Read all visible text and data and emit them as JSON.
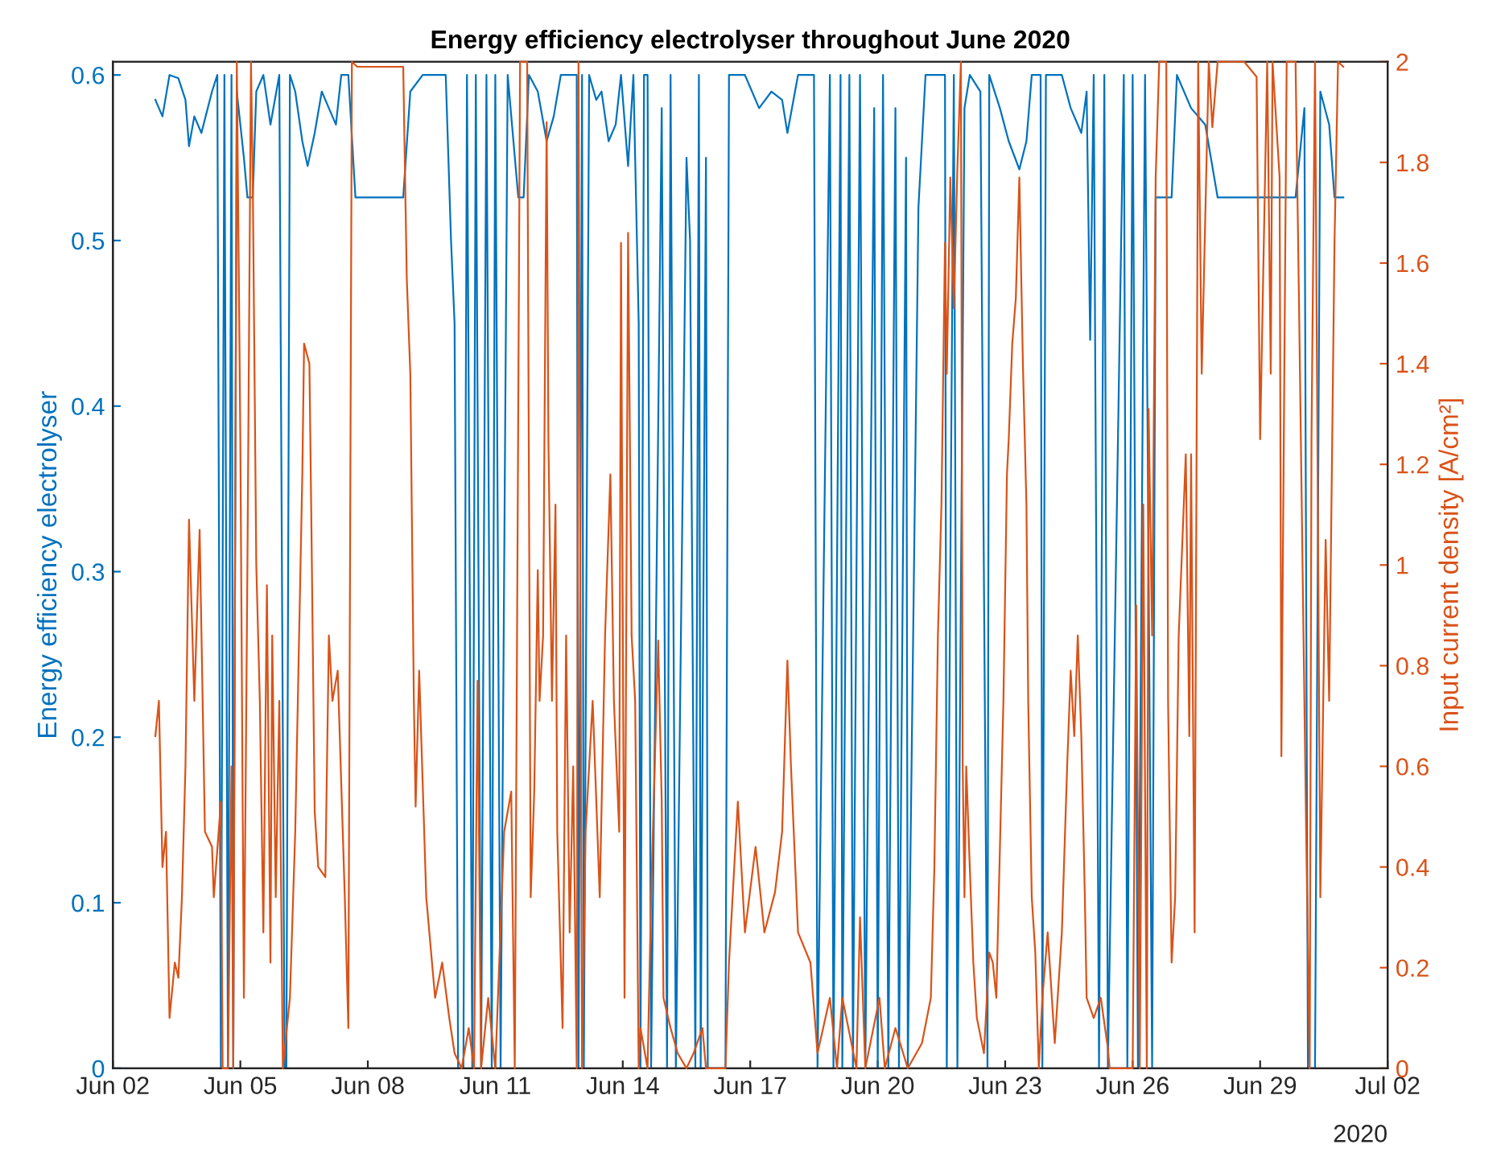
{
  "chart_data": {
    "type": "line",
    "title": "Energy efficiency electrolyser throughout June 2020",
    "ylabel": "Energy efficiency electrolyser",
    "y2label": "Input current density [A/cm²]",
    "xlim": [
      "2020-06-02",
      "2020-07-02"
    ],
    "xticks": [
      {
        "value": "2020-06-02",
        "label": "Jun 02"
      },
      {
        "value": "2020-06-05",
        "label": "Jun 05"
      },
      {
        "value": "2020-06-08",
        "label": "Jun 08"
      },
      {
        "value": "2020-06-11",
        "label": "Jun 11"
      },
      {
        "value": "2020-06-14",
        "label": "Jun 14"
      },
      {
        "value": "2020-06-17",
        "label": "Jun 17"
      },
      {
        "value": "2020-06-20",
        "label": "Jun 20"
      },
      {
        "value": "2020-06-23",
        "label": "Jun 23"
      },
      {
        "value": "2020-06-26",
        "label": "Jun 26"
      },
      {
        "value": "2020-06-29",
        "label": "Jun 29"
      },
      {
        "value": "2020-07-02",
        "label": "Jul 02"
      }
    ],
    "ylim": [
      0,
      0.608
    ],
    "yticks": [
      0,
      0.1,
      0.2,
      0.3,
      0.4,
      0.5,
      0.6
    ],
    "y2lim": [
      0,
      2
    ],
    "y2ticks": [
      0,
      0.2,
      0.4,
      0.6,
      0.8,
      1,
      1.2,
      1.4,
      1.6,
      1.8,
      2
    ],
    "grid": false,
    "legend": false,
    "marker": "none",
    "line_style": "solid",
    "annotations": [
      "2020"
    ],
    "series": [
      {
        "color": "#0072bd",
        "x": [
          "2020-06-03T00:00",
          "2020-06-03T04:00",
          "2020-06-03T08:00",
          "2020-06-03T13:00",
          "2020-06-03T17:00",
          "2020-06-03T19:00",
          "2020-06-03T22:00",
          "2020-06-04T02:00",
          "2020-06-04T08:00",
          "2020-06-04T11:00",
          "2020-06-04T13:00",
          "2020-06-04T15:00",
          "2020-06-04T17:00",
          "2020-06-04T19:00",
          "2020-06-04T20:00",
          "2020-06-04T22:00",
          "2020-06-05T02:00",
          "2020-06-05T04:00",
          "2020-06-05T07:00",
          "2020-06-05T09:00",
          "2020-06-05T13:00",
          "2020-06-05T17:00",
          "2020-06-05T22:00",
          "2020-06-06T01:00",
          "2020-06-06T02:00",
          "2020-06-06T04:00",
          "2020-06-06T07:00",
          "2020-06-06T11:00",
          "2020-06-06T14:00",
          "2020-06-06T18:00",
          "2020-06-06T22:00",
          "2020-06-07T02:00",
          "2020-06-07T06:00",
          "2020-06-07T09:00",
          "2020-06-07T13:00",
          "2020-06-07T17:00",
          "2020-06-08T20:00",
          "2020-06-09T00:00",
          "2020-06-09T07:00",
          "2020-06-09T14:00",
          "2020-06-09T20:00",
          "2020-06-09T23:00",
          "2020-06-10T01:00",
          "2020-06-10T03:00",
          "2020-06-10T06:00",
          "2020-06-10T08:00",
          "2020-06-10T11:00",
          "2020-06-10T13:00",
          "2020-06-10T16:00",
          "2020-06-10T19:00",
          "2020-06-10T22:00",
          "2020-06-11T00:00",
          "2020-06-11T03:00",
          "2020-06-11T07:00",
          "2020-06-11T13:00",
          "2020-06-11T16:00",
          "2020-06-11T19:00",
          "2020-06-12T00:00",
          "2020-06-12T05:00",
          "2020-06-12T09:00",
          "2020-06-12T13:00",
          "2020-06-12T18:00",
          "2020-06-12T22:00",
          "2020-06-12T23:00",
          "2020-06-13T01:00",
          "2020-06-13T02:00",
          "2020-06-13T05:00",
          "2020-06-13T09:00",
          "2020-06-13T12:00",
          "2020-06-13T16:00",
          "2020-06-13T20:00",
          "2020-06-13T23:00",
          "2020-06-14T03:00",
          "2020-06-14T06:00",
          "2020-06-14T09:00",
          "2020-06-14T10:00",
          "2020-06-14T12:00",
          "2020-06-14T14:00",
          "2020-06-14T16:00",
          "2020-06-14T22:00",
          "2020-06-15T01:00",
          "2020-06-15T03:00",
          "2020-06-15T06:00",
          "2020-06-15T12:00",
          "2020-06-15T14:00",
          "2020-06-15T17:00",
          "2020-06-15T19:00",
          "2020-06-15T20:00",
          "2020-06-15T23:00",
          "2020-06-16T00:00",
          "2020-06-16T10:00",
          "2020-06-16T12:00",
          "2020-06-16T21:00",
          "2020-06-17T05:00",
          "2020-06-17T12:00",
          "2020-06-17T18:00",
          "2020-06-17T21:00",
          "2020-06-18T03:00",
          "2020-06-18T12:00",
          "2020-06-18T14:00",
          "2020-06-18T21:00",
          "2020-06-18T23:00",
          "2020-06-19T03:00",
          "2020-06-19T04:00",
          "2020-06-19T08:00",
          "2020-06-19T10:00",
          "2020-06-19T14:00",
          "2020-06-19T17:00",
          "2020-06-19T22:00",
          "2020-06-20T00:00",
          "2020-06-20T03:00",
          "2020-06-20T06:00",
          "2020-06-20T10:00",
          "2020-06-20T12:00",
          "2020-06-20T16:00",
          "2020-06-20T17:00",
          "2020-06-20T23:00",
          "2020-06-21T03:00",
          "2020-06-21T06:00",
          "2020-06-21T14:00",
          "2020-06-21T15:00",
          "2020-06-21T19:00",
          "2020-06-21T21:00",
          "2020-06-22T01:00",
          "2020-06-22T04:00",
          "2020-06-22T10:00",
          "2020-06-22T14:00",
          "2020-06-22T15:00",
          "2020-06-22T21:00",
          "2020-06-23T02:00",
          "2020-06-23T08:00",
          "2020-06-23T12:00",
          "2020-06-23T15:00",
          "2020-06-23T20:00",
          "2020-06-23T21:00",
          "2020-06-23T23:00",
          "2020-06-24T08:00",
          "2020-06-24T13:00",
          "2020-06-24T19:00",
          "2020-06-24T22:00",
          "2020-06-25T00:00",
          "2020-06-25T02:00",
          "2020-06-25T05:00",
          "2020-06-25T08:00",
          "2020-06-25T10:00",
          "2020-06-25T19:00",
          "2020-06-25T21:00",
          "2020-06-26T00:00",
          "2020-06-26T03:00",
          "2020-06-26T07:00",
          "2020-06-26T11:00",
          "2020-06-26T13:00",
          "2020-06-26T22:00",
          "2020-06-27T01:00",
          "2020-06-27T09:00",
          "2020-06-27T17:00",
          "2020-06-28T00:00",
          "2020-06-29T20:00",
          "2020-06-30T01:00",
          "2020-06-30T03:00",
          "2020-06-30T07:00",
          "2020-06-30T10:00",
          "2020-06-30T15:00",
          "2020-06-30T18:00",
          "2020-06-30T23:00"
        ],
        "values": [
          0.585,
          0.575,
          0.6,
          0.598,
          0.585,
          0.557,
          0.575,
          0.565,
          0.59,
          0.6,
          0,
          0.6,
          0,
          0.6,
          0,
          0.59,
          0.55,
          0.526,
          0.526,
          0.59,
          0.6,
          0.57,
          0.6,
          0,
          0,
          0.6,
          0.59,
          0.56,
          0.545,
          0.565,
          0.59,
          0.58,
          0.57,
          0.6,
          0.6,
          0.526,
          0.526,
          0.59,
          0.6,
          0.6,
          0.6,
          0.5,
          0.45,
          0,
          0,
          0.6,
          0,
          0.6,
          0,
          0.6,
          0,
          0.6,
          0,
          0.6,
          0.526,
          0.526,
          0.6,
          0.59,
          0.56,
          0.575,
          0.6,
          0.6,
          0.6,
          0,
          0.6,
          0,
          0.6,
          0.585,
          0.59,
          0.56,
          0.57,
          0.6,
          0.545,
          0.6,
          0.45,
          0,
          0.6,
          0.6,
          0,
          0.58,
          0,
          0.6,
          0,
          0.55,
          0.5,
          0,
          0.6,
          0,
          0.55,
          0,
          0,
          0.6,
          0.6,
          0.58,
          0.59,
          0.585,
          0.565,
          0.6,
          0.6,
          0,
          0.6,
          0,
          0.6,
          0,
          0.6,
          0,
          0.6,
          0,
          0.58,
          0,
          0.6,
          0,
          0.58,
          0,
          0.55,
          0,
          0.52,
          0.6,
          0.6,
          0.6,
          0,
          0.6,
          0,
          0.58,
          0.6,
          0.59,
          0,
          0.6,
          0.58,
          0.56,
          0.543,
          0.56,
          0.6,
          0.6,
          0,
          0.6,
          0.6,
          0.58,
          0.565,
          0.59,
          0.44,
          0.6,
          0,
          0.6,
          0,
          0.6,
          0,
          0.6,
          0,
          0.6,
          0,
          0.526,
          0.526,
          0.6,
          0.58,
          0.57,
          0.526,
          0.526,
          0.58,
          0,
          0,
          0.59,
          0.57,
          0.526,
          0.526
        ]
      },
      {
        "color": "#d95319",
        "axis": "y2",
        "x": [
          "2020-06-03T00:00",
          "2020-06-03T02:00",
          "2020-06-03T04:00",
          "2020-06-03T06:00",
          "2020-06-03T08:00",
          "2020-06-03T11:00",
          "2020-06-03T13:00",
          "2020-06-03T15:00",
          "2020-06-03T17:00",
          "2020-06-03T19:00",
          "2020-06-03T22:00",
          "2020-06-04T01:00",
          "2020-06-04T04:00",
          "2020-06-04T08:00",
          "2020-06-04T09:00",
          "2020-06-04T13:00",
          "2020-06-04T14:00",
          "2020-06-04T17:00",
          "2020-06-04T19:00",
          "2020-06-04T20:00",
          "2020-06-04T22:00",
          "2020-06-05T00:00",
          "2020-06-05T02:00",
          "2020-06-05T04:00",
          "2020-06-05T06:00",
          "2020-06-05T07:00",
          "2020-06-05T09:00",
          "2020-06-05T11:00",
          "2020-06-05T13:00",
          "2020-06-05T15:00",
          "2020-06-05T17:00",
          "2020-06-05T18:00",
          "2020-06-05T20:00",
          "2020-06-05T22:00",
          "2020-06-06T00:00",
          "2020-06-06T04:00",
          "2020-06-06T07:00",
          "2020-06-06T11:00",
          "2020-06-06T12:00",
          "2020-06-06T15:00",
          "2020-06-06T16:00",
          "2020-06-06T18:00",
          "2020-06-06T20:00",
          "2020-06-07T00:00",
          "2020-06-07T02:00",
          "2020-06-07T04:00",
          "2020-06-07T07:00",
          "2020-06-07T11:00",
          "2020-06-07T13:00",
          "2020-06-07T15:00",
          "2020-06-07T18:00",
          "2020-06-08T20:00",
          "2020-06-08T22:00",
          "2020-06-09T00:00",
          "2020-06-09T02:00",
          "2020-06-09T03:00",
          "2020-06-09T05:00",
          "2020-06-09T09:00",
          "2020-06-09T14:00",
          "2020-06-09T18:00",
          "2020-06-09T22:00",
          "2020-06-10T01:00",
          "2020-06-10T05:00",
          "2020-06-10T09:00",
          "2020-06-10T12:00",
          "2020-06-10T14:00",
          "2020-06-10T16:00",
          "2020-06-10T20:00",
          "2020-06-11T00:00",
          "2020-06-11T05:00",
          "2020-06-11T09:00",
          "2020-06-11T11:00",
          "2020-06-11T14:00",
          "2020-06-11T18:00",
          "2020-06-11T20:00",
          "2020-06-11T22:00",
          "2020-06-12T00:00",
          "2020-06-12T01:00",
          "2020-06-12T03:00",
          "2020-06-12T05:00",
          "2020-06-12T06:00",
          "2020-06-12T08:00",
          "2020-06-12T10:00",
          "2020-06-12T11:00",
          "2020-06-12T14:00",
          "2020-06-12T16:00",
          "2020-06-12T18:00",
          "2020-06-12T20:00",
          "2020-06-12T22:00",
          "2020-06-12T23:00",
          "2020-06-13T01:00",
          "2020-06-13T03:00",
          "2020-06-13T07:00",
          "2020-06-13T11:00",
          "2020-06-13T14:00",
          "2020-06-13T17:00",
          "2020-06-13T19:00",
          "2020-06-13T22:00",
          "2020-06-13T23:00",
          "2020-06-14T01:00",
          "2020-06-14T03:00",
          "2020-06-14T05:00",
          "2020-06-14T07:00",
          "2020-06-14T09:00",
          "2020-06-14T10:00",
          "2020-06-14T14:00",
          "2020-06-14T16:00",
          "2020-06-14T20:00",
          "2020-06-14T22:00",
          "2020-06-14T23:00",
          "2020-06-15T03:00",
          "2020-06-15T07:00",
          "2020-06-15T12:00",
          "2020-06-15T16:00",
          "2020-06-15T21:00",
          "2020-06-15T23:00",
          "2020-06-16T10:00",
          "2020-06-16T12:00",
          "2020-06-16T17:00",
          "2020-06-16T21:00",
          "2020-06-17T03:00",
          "2020-06-17T08:00",
          "2020-06-17T14:00",
          "2020-06-17T18:00",
          "2020-06-17T21:00",
          "2020-06-17T23:00",
          "2020-06-18T03:00",
          "2020-06-18T10:00",
          "2020-06-18T14:00",
          "2020-06-18T21:00",
          "2020-06-19T01:00",
          "2020-06-19T04:00",
          "2020-06-19T12:00",
          "2020-06-19T14:00",
          "2020-06-19T17:00",
          "2020-06-20T01:00",
          "2020-06-20T04:00",
          "2020-06-20T10:00",
          "2020-06-20T17:00",
          "2020-06-21T01:00",
          "2020-06-21T06:00",
          "2020-06-21T08:00",
          "2020-06-21T10:00",
          "2020-06-21T12:00",
          "2020-06-21T14:00",
          "2020-06-21T15:00",
          "2020-06-21T17:00",
          "2020-06-21T19:00",
          "2020-06-21T21:00",
          "2020-06-21T23:00",
          "2020-06-22T00:00",
          "2020-06-22T01:00",
          "2020-06-22T02:00",
          "2020-06-22T04:00",
          "2020-06-22T06:00",
          "2020-06-22T08:00",
          "2020-06-22T12:00",
          "2020-06-22T15:00",
          "2020-06-22T17:00",
          "2020-06-22T19:00",
          "2020-06-22T23:00",
          "2020-06-23T01:00",
          "2020-06-23T02:00",
          "2020-06-23T04:00",
          "2020-06-23T06:00",
          "2020-06-23T08:00",
          "2020-06-23T10:00",
          "2020-06-23T12:00",
          "2020-06-23T13:00",
          "2020-06-23T15:00",
          "2020-06-23T17:00",
          "2020-06-23T19:00",
          "2020-06-23T21:00",
          "2020-06-24T00:00",
          "2020-06-24T04:00",
          "2020-06-24T08:00",
          "2020-06-24T11:00",
          "2020-06-24T13:00",
          "2020-06-24T15:00",
          "2020-06-24T17:00",
          "2020-06-24T19:00",
          "2020-06-24T21:00",
          "2020-06-24T22:00",
          "2020-06-25T02:00",
          "2020-06-25T06:00",
          "2020-06-25T10:00",
          "2020-06-25T11:00",
          "2020-06-25T17:00",
          "2020-06-26T00:00",
          "2020-06-26T02:00",
          "2020-06-26T04:00",
          "2020-06-26T06:00",
          "2020-06-26T08:00",
          "2020-06-26T09:00",
          "2020-06-26T11:00",
          "2020-06-26T13:00",
          "2020-06-26T15:00",
          "2020-06-26T19:00",
          "2020-06-26T20:00",
          "2020-06-26T22:00",
          "2020-06-27T00:00",
          "2020-06-27T02:00",
          "2020-06-27T06:00",
          "2020-06-27T08:00",
          "2020-06-27T09:00",
          "2020-06-27T11:00",
          "2020-06-27T13:00",
          "2020-06-27T15:00",
          "2020-06-27T19:00",
          "2020-06-27T21:00",
          "2020-06-28T00:00",
          "2020-06-28T04:00",
          "2020-06-28T15:00",
          "2020-06-28T22:00",
          "2020-06-29T00:00",
          "2020-06-29T04:00",
          "2020-06-29T06:00",
          "2020-06-29T07:00",
          "2020-06-29T11:00",
          "2020-06-29T12:00",
          "2020-06-29T15:00",
          "2020-06-29T20:00",
          "2020-06-29T22:00",
          "2020-06-30T02:00",
          "2020-06-30T04:00",
          "2020-06-30T05:00",
          "2020-06-30T07:00",
          "2020-06-30T10:00",
          "2020-06-30T13:00",
          "2020-06-30T15:00",
          "2020-06-30T18:00",
          "2020-06-30T20:00",
          "2020-06-30T23:00"
        ],
        "values": [
          0.66,
          0.73,
          0.4,
          0.47,
          0.1,
          0.21,
          0.18,
          0.34,
          0.6,
          1.09,
          0.73,
          1.07,
          0.47,
          0.44,
          0.34,
          0.53,
          0,
          0,
          0.6,
          0,
          2,
          1.25,
          0.14,
          1,
          2,
          1.77,
          1,
          0.73,
          0.27,
          0.96,
          0.21,
          0.86,
          0.34,
          0.73,
          0,
          0.14,
          0.47,
          1.18,
          1.44,
          1.4,
          1.12,
          0.51,
          0.4,
          0.38,
          0.86,
          0.73,
          0.79,
          0.34,
          0.08,
          2,
          1.99,
          1.99,
          1.57,
          1.38,
          0.73,
          0.52,
          0.79,
          0.34,
          0.14,
          0.21,
          0.1,
          0.03,
          0,
          0.08,
          0,
          0.77,
          0,
          0.14,
          0,
          0.47,
          0.55,
          0,
          2,
          2,
          0.34,
          0.55,
          0.99,
          0.73,
          0.86,
          1.88,
          1.25,
          0.73,
          1.12,
          0.47,
          0.08,
          0.86,
          0.27,
          0.6,
          0,
          2,
          0,
          0.47,
          0.73,
          0.34,
          0.86,
          1.18,
          0.73,
          0.47,
          1.64,
          0.14,
          1.66,
          0.86,
          0.73,
          0,
          0.08,
          0,
          0.34,
          0.85,
          0.53,
          0.14,
          0.08,
          0.03,
          0,
          0.03,
          0.08,
          0,
          0,
          0.21,
          0.53,
          0.27,
          0.44,
          0.27,
          0.35,
          0.47,
          0.81,
          0.6,
          0.27,
          0.21,
          0.03,
          0.14,
          0,
          0.14,
          0,
          0.3,
          0,
          0.14,
          0,
          0.08,
          0,
          0.05,
          0.14,
          0.4,
          0.86,
          1.12,
          1.64,
          1.38,
          1.77,
          1.51,
          1.79,
          2,
          0.6,
          0.34,
          0.6,
          0.4,
          0.21,
          0.1,
          0.03,
          0.23,
          0.21,
          0.14,
          0.73,
          1.18,
          1.25,
          1.44,
          1.53,
          1.77,
          1.4,
          1.12,
          0.73,
          0.34,
          0.23,
          0,
          0.14,
          0.27,
          0.05,
          0.27,
          0.6,
          0.79,
          0.66,
          0.86,
          0.66,
          0.34,
          0.14,
          0.1,
          0.14,
          0.04,
          0,
          0,
          0,
          0.92,
          0,
          1.12,
          0,
          1.31,
          0.86,
          1.77,
          2,
          2,
          0.73,
          0.21,
          0.34,
          0.86,
          1.22,
          0.66,
          1.22,
          0.27,
          2,
          1.38,
          2,
          1.87,
          2,
          2,
          2,
          1.97,
          1.25,
          2,
          1.38,
          2,
          1.77,
          0.62,
          2,
          2,
          1.51,
          0.47,
          0,
          1.25,
          2,
          0.34,
          1.05,
          0.73,
          1.64,
          2,
          1.99
        ]
      }
    ]
  }
}
